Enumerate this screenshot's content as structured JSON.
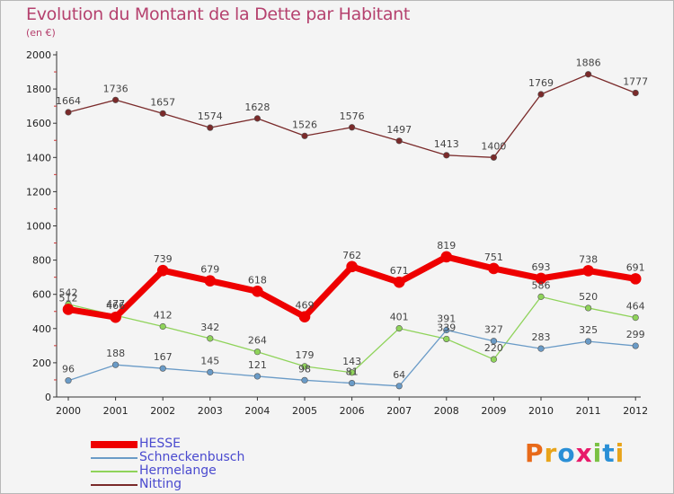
{
  "title": "Evolution du Montant de la Dette par Habitant",
  "unit_label": "(en €)",
  "logo": {
    "text": "Proxiti",
    "colors": [
      "#e86a1a",
      "#e8a41a",
      "#2a8fd6",
      "#e81a6a",
      "#7ac143",
      "#2a8fd6",
      "#e8a41a"
    ]
  },
  "chart_data": {
    "type": "line",
    "title": "Evolution du Montant de la Dette par Habitant",
    "ylabel": "(en €)",
    "xlabel": "",
    "x": [
      "2000",
      "2001",
      "2002",
      "2003",
      "2004",
      "2005",
      "2006",
      "2007",
      "2008",
      "2009",
      "2010",
      "2011",
      "2012"
    ],
    "ylim": [
      0,
      2000
    ],
    "yticks": [
      "0",
      "200",
      "400",
      "600",
      "800",
      "1000",
      "1200",
      "1400",
      "1600",
      "1800",
      "2000"
    ],
    "grid": false,
    "legend_position": "bottom-left",
    "series": [
      {
        "name": "HESSE",
        "color": "#ee0000",
        "values": [
          512,
          466,
          739,
          679,
          618,
          469,
          762,
          671,
          819,
          751,
          693,
          738,
          691
        ],
        "labels": [
          "512",
          "466",
          "739",
          "679",
          "618",
          "469",
          "762",
          "671",
          "819",
          "751",
          "693",
          "738",
          "691"
        ]
      },
      {
        "name": "Schneckenbusch",
        "color": "#6a9bc7",
        "values": [
          96,
          188,
          167,
          145,
          121,
          98,
          81,
          64,
          391,
          327,
          283,
          325,
          299
        ],
        "labels": [
          "96",
          "188",
          "167",
          "145",
          "121",
          "98",
          "81",
          "64",
          "391",
          "327",
          "283",
          "325",
          "299"
        ]
      },
      {
        "name": "Hermelange",
        "color": "#8fd35a",
        "values": [
          542,
          477,
          412,
          342,
          264,
          179,
          143,
          401,
          339,
          220,
          586,
          520,
          464
        ],
        "labels": [
          "542",
          "477",
          "412",
          "342",
          "264",
          "179",
          "143",
          "401",
          "339",
          "220",
          "586",
          "520",
          "464"
        ]
      },
      {
        "name": "Nitting",
        "color": "#7a2a2a",
        "values": [
          1664,
          1736,
          1657,
          1574,
          1628,
          1526,
          1576,
          1497,
          1413,
          1400,
          1769,
          1886,
          1777
        ],
        "labels": [
          "1664",
          "1736",
          "1657",
          "1574",
          "1628",
          "1526",
          "1576",
          "1497",
          "1413",
          "1400",
          "1769",
          "1886",
          "1777"
        ]
      }
    ]
  }
}
